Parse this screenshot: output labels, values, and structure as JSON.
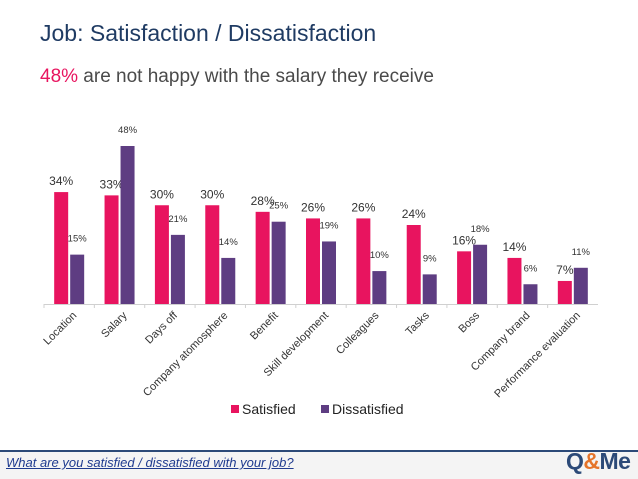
{
  "header": {
    "title": "Job: Satisfaction / Dissatisfaction",
    "subtitle_highlight": "48%",
    "subtitle_rest": " are not happy with the salary they receive"
  },
  "footer": {
    "question": "What are you satisfied / dissatisfied with your job?",
    "logo_q": "Q",
    "logo_amp": "&",
    "logo_me": "Me"
  },
  "colors": {
    "satisfied": "#e8145f",
    "dissatisfied": "#5e3d82",
    "title": "#1f3b63",
    "logo_blue": "#2c4a78",
    "logo_orange": "#e5742a"
  },
  "chart_data": {
    "type": "bar",
    "title": "",
    "xlabel": "",
    "ylabel": "",
    "ylim": [
      0,
      50
    ],
    "grid": false,
    "legend": "bottom",
    "categories": [
      "Location",
      "Salary",
      "Days off",
      "Company atomosphere",
      "Benefit",
      "Skill development",
      "Colleagues",
      "Tasks",
      "Boss",
      "Company brand",
      "Performance evaluation"
    ],
    "series": [
      {
        "name": "Satisfied",
        "values": [
          34,
          33,
          30,
          30,
          28,
          26,
          26,
          24,
          16,
          14,
          7
        ],
        "labels": [
          "34%",
          "33%",
          "30%",
          "30%",
          "28%",
          "26%",
          "26%",
          "24%",
          "16%",
          "14%",
          "7%"
        ]
      },
      {
        "name": "Dissatisfied",
        "values": [
          15,
          48,
          21,
          14,
          25,
          19,
          10,
          9,
          18,
          6,
          11
        ],
        "labels": [
          "15%",
          "48%",
          "21%",
          "14%",
          "25%",
          "19%",
          "10%",
          "9%",
          "18%",
          "6%",
          "11%"
        ]
      }
    ]
  }
}
